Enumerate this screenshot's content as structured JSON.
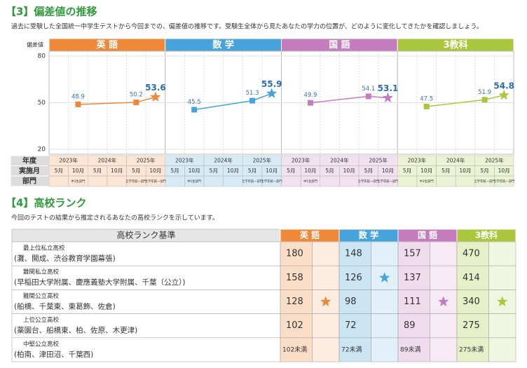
{
  "section3": {
    "title": "【3】偏差値の推移",
    "description": "過去に受験した全国統一中学生テストから今回までの、偏差値の推移です。受験生全体から見たあなたの学力の位置が、どのように変化してきたかを確認しましょう。",
    "chart_data": {
      "type": "line",
      "y_label": "偏差値",
      "ylim": [
        20,
        80
      ],
      "yticks": [
        20,
        50,
        80
      ],
      "grid": true,
      "row_labels": [
        "年度",
        "実施月",
        "部門"
      ],
      "years": [
        "2023年",
        "2024年",
        "2025年"
      ],
      "months": [
        "5月",
        "10月",
        "5月",
        "10月",
        "5月",
        "10月"
      ],
      "divisions": [
        null,
        "中1生部門",
        null,
        null,
        "全学年統一部門",
        "全学年統一部門"
      ],
      "series": [
        {
          "name": "英 語",
          "color": "#f0883a",
          "values": [
            null,
            48.9,
            null,
            null,
            50.2,
            53.6
          ]
        },
        {
          "name": "数 学",
          "color": "#47a3dc",
          "values": [
            null,
            45.5,
            null,
            null,
            51.3,
            55.9
          ]
        },
        {
          "name": "国 語",
          "color": "#c47cbc",
          "values": [
            null,
            49.9,
            null,
            null,
            54.1,
            53.1
          ]
        },
        {
          "name": "3教科",
          "color": "#a9c63c",
          "values": [
            null,
            47.5,
            null,
            null,
            51.9,
            54.8
          ]
        }
      ]
    }
  },
  "section4": {
    "title": "【4】高校ランク",
    "description": "今回のテストの結果から推定されるあなたの高校ランクを示しています。",
    "table": {
      "header": "高校ランク基準",
      "rows": [
        {
          "rank": "最上位私立高校",
          "schools": "(灘、開成、渋谷教育学園幕張)",
          "scores": [
            180,
            148,
            157,
            470
          ],
          "stars": [
            false,
            false,
            false,
            false
          ]
        },
        {
          "rank": "難関私立高校",
          "schools": "(早稲田大学附属、慶應義塾大学附属、千葉（公立）)",
          "scores": [
            158,
            126,
            137,
            414
          ],
          "stars": [
            false,
            true,
            false,
            false
          ]
        },
        {
          "rank": "難関公立高校",
          "schools": "(船橋、千葉東、東葛飾、佐倉)",
          "scores": [
            128,
            98,
            111,
            340
          ],
          "stars": [
            true,
            false,
            true,
            true
          ]
        },
        {
          "rank": "上位公立高校",
          "schools": "(薬園台、船橋東、柏、佐原、木更津)",
          "scores": [
            102,
            72,
            89,
            275
          ],
          "stars": [
            false,
            false,
            false,
            false
          ]
        },
        {
          "rank": "中堅公立高校",
          "schools": "(柏南、津田沼、千葉西)",
          "scores": [
            "102未満",
            "72未満",
            "89未満",
            "275未満"
          ],
          "stars": [
            false,
            false,
            false,
            false
          ]
        }
      ]
    }
  }
}
